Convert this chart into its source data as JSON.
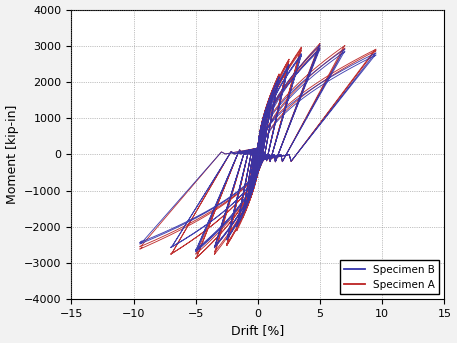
{
  "xlabel": "Drift [%]",
  "ylabel": "Moment [kip-in]",
  "xlim": [
    -15,
    15
  ],
  "ylim": [
    -4000,
    4000
  ],
  "xticks": [
    -15,
    -10,
    -5,
    0,
    5,
    10,
    15
  ],
  "yticks": [
    -4000,
    -3000,
    -2000,
    -1000,
    0,
    1000,
    2000,
    3000,
    4000
  ],
  "color_B": "#3333aa",
  "color_A": "#bb2222",
  "legend_labels": [
    "Specimen B",
    "Specimen A"
  ],
  "background_color": "#ffffff",
  "grid_color": "#888888",
  "fig_bg": "#f2f2f2",
  "drift_amps": [
    0.15,
    0.25,
    0.4,
    0.6,
    0.85,
    1.2,
    1.7,
    2.5,
    3.5,
    5.0,
    7.0,
    9.5
  ],
  "n_cycles": [
    3,
    3,
    3,
    3,
    3,
    3,
    3,
    3,
    3,
    3,
    2,
    2
  ],
  "mcp_B": [
    220,
    400,
    650,
    950,
    1300,
    1700,
    2100,
    2500,
    2750,
    2900,
    2850,
    2750
  ],
  "mcn_B": [
    200,
    380,
    620,
    900,
    1250,
    1600,
    2000,
    2350,
    2550,
    2650,
    2600,
    2500
  ],
  "mcp_A": [
    230,
    420,
    680,
    980,
    1350,
    1780,
    2200,
    2600,
    2900,
    3020,
    2980,
    2800
  ],
  "mcn_A": [
    210,
    400,
    650,
    940,
    1300,
    1680,
    2100,
    2450,
    2700,
    2800,
    2750,
    2600
  ]
}
